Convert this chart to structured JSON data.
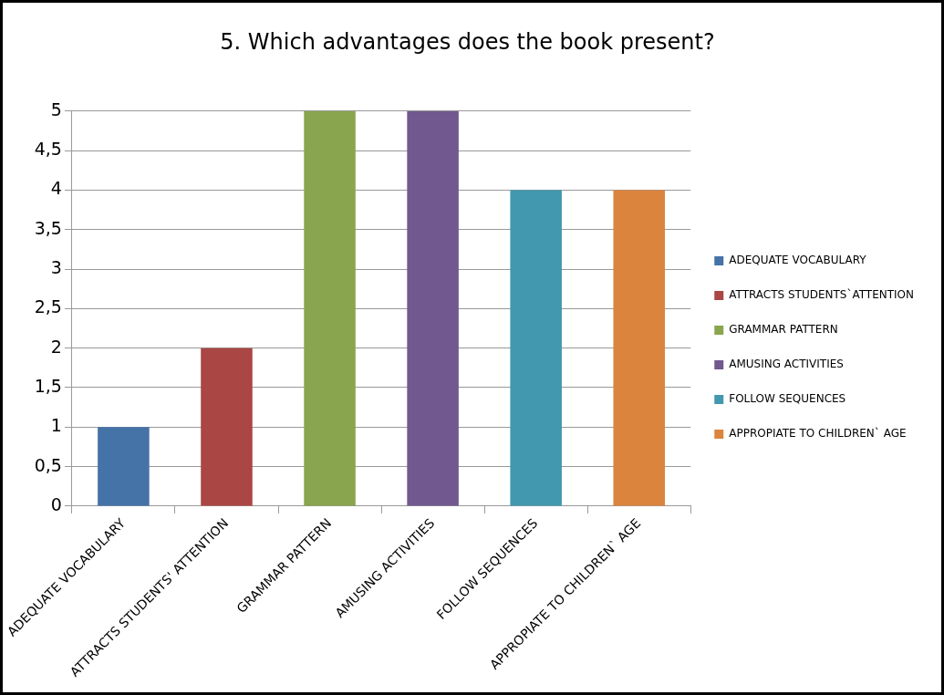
{
  "chart_data": {
    "type": "bar",
    "title": "5. Which advantages does the book present?",
    "categories": [
      "ADEQUATE VOCABULARY",
      "ATTRACTS STUDENTS' ATTENTION",
      "GRAMMAR PATTERN",
      "AMUSING ACTIVITIES",
      "FOLLOW SEQUENCES",
      "APPROPIATE TO CHILDREN` AGE"
    ],
    "series": [
      {
        "name": "ADEQUATE VOCABULARY",
        "color": "#4572a7",
        "values": [
          1,
          null,
          null,
          null,
          null,
          null
        ]
      },
      {
        "name": "ATTRACTS STUDENTS`ATTENTION",
        "color": "#aa4643",
        "values": [
          null,
          2,
          null,
          null,
          null,
          null
        ]
      },
      {
        "name": "GRAMMAR PATTERN",
        "color": "#89a54e",
        "values": [
          null,
          null,
          5,
          null,
          null,
          null
        ]
      },
      {
        "name": "AMUSING ACTIVITIES",
        "color": "#71588f",
        "values": [
          null,
          null,
          null,
          5,
          null,
          null
        ]
      },
      {
        "name": "FOLLOW SEQUENCES",
        "color": "#4198af",
        "values": [
          null,
          null,
          null,
          null,
          4,
          null
        ]
      },
      {
        "name": "APPROPIATE TO CHILDREN` AGE",
        "color": "#db843d",
        "values": [
          null,
          null,
          null,
          null,
          null,
          4
        ]
      }
    ],
    "ylim": [
      0,
      5
    ],
    "yticks": [
      0,
      {
        "value": 0.5,
        "label": "0,5"
      },
      1,
      {
        "value": 1.5,
        "label": "1,5"
      },
      2,
      {
        "value": 2.5,
        "label": "2,5"
      },
      3,
      {
        "value": 3.5,
        "label": "3,5"
      },
      4,
      {
        "value": 4.5,
        "label": "4,5"
      },
      5
    ],
    "grid": true,
    "legend": "right"
  }
}
